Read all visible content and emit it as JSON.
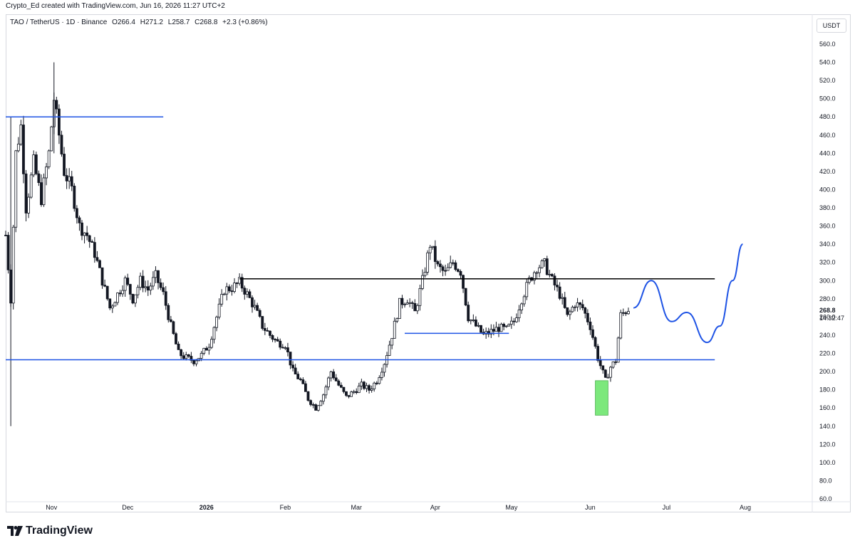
{
  "header": {
    "attribution": "Crypto_Ed created with TradingView.com, Jun 16, 2026 11:27 UTC+2"
  },
  "symbol_bar": {
    "symbol": "TAO / TetherUS · 1D · Binance",
    "open": "O266.4",
    "high": "H271.2",
    "low": "L258.7",
    "close": "C268.8",
    "change": "+2.3 (+0.86%)"
  },
  "currency_button": "USDT",
  "branding": "TradingView",
  "price_label": {
    "value": "268.8",
    "countdown": "14:32:47"
  },
  "colors": {
    "candle": "#131722",
    "support_line": "#1e53e5",
    "resistance_line": "#000000",
    "projection": "#1e53e5",
    "highlight_box": "#7ce87c"
  },
  "chart_data": {
    "type": "candlestick",
    "title": "",
    "xlabel": "",
    "ylabel": "",
    "ylim": [
      60,
      570
    ],
    "x_range": [
      "2025-10-14",
      "2026-08-01"
    ],
    "y_ticks": [
      60,
      80,
      100,
      120,
      140,
      160,
      180,
      200,
      220,
      240,
      260,
      280,
      300,
      320,
      340,
      360,
      380,
      400,
      420,
      440,
      460,
      480,
      500,
      520,
      540,
      560
    ],
    "y_tick_labels": [
      "60.0",
      "80.0",
      "100.0",
      "120.0",
      "140.0",
      "160.0",
      "180.0",
      "200.0",
      "220.0",
      "240.0",
      "260.0",
      "280.0",
      "300.0",
      "320.0",
      "340.0",
      "360.0",
      "380.0",
      "400.0",
      "420.0",
      "440.0",
      "460.0",
      "480.0",
      "500.0",
      "520.0",
      "540.0",
      "560.0"
    ],
    "x_ticks": [
      {
        "date": "2025-11-01",
        "label": "Nov",
        "bold": false
      },
      {
        "date": "2025-12-01",
        "label": "Dec",
        "bold": false
      },
      {
        "date": "2026-01-01",
        "label": "2026",
        "bold": true
      },
      {
        "date": "2026-02-01",
        "label": "Feb",
        "bold": false
      },
      {
        "date": "2026-03-01",
        "label": "Mar",
        "bold": false
      },
      {
        "date": "2026-04-01",
        "label": "Apr",
        "bold": false
      },
      {
        "date": "2026-05-01",
        "label": "May",
        "bold": false
      },
      {
        "date": "2026-06-01",
        "label": "Jun",
        "bold": false
      },
      {
        "date": "2026-07-01",
        "label": "Jul",
        "bold": false
      },
      {
        "date": "2026-08-01",
        "label": "Aug",
        "bold": false
      }
    ],
    "close_series": [
      [
        "2025-10-14",
        350
      ],
      [
        "2025-10-16",
        280
      ],
      [
        "2025-10-18",
        440
      ],
      [
        "2025-10-20",
        470
      ],
      [
        "2025-10-22",
        380
      ],
      [
        "2025-10-25",
        430
      ],
      [
        "2025-10-28",
        390
      ],
      [
        "2025-10-31",
        440
      ],
      [
        "2025-11-02",
        500
      ],
      [
        "2025-11-04",
        460
      ],
      [
        "2025-11-06",
        420
      ],
      [
        "2025-11-09",
        400
      ],
      [
        "2025-11-12",
        360
      ],
      [
        "2025-11-15",
        350
      ],
      [
        "2025-11-18",
        330
      ],
      [
        "2025-11-21",
        300
      ],
      [
        "2025-11-24",
        270
      ],
      [
        "2025-11-27",
        285
      ],
      [
        "2025-11-30",
        300
      ],
      [
        "2025-12-03",
        280
      ],
      [
        "2025-12-06",
        300
      ],
      [
        "2025-12-09",
        290
      ],
      [
        "2025-12-12",
        305
      ],
      [
        "2025-12-15",
        285
      ],
      [
        "2025-12-18",
        250
      ],
      [
        "2025-12-21",
        220
      ],
      [
        "2025-12-24",
        215
      ],
      [
        "2025-12-27",
        212
      ],
      [
        "2025-12-30",
        218
      ],
      [
        "2026-01-02",
        230
      ],
      [
        "2026-01-05",
        260
      ],
      [
        "2026-01-08",
        290
      ],
      [
        "2026-01-11",
        292
      ],
      [
        "2026-01-14",
        298
      ],
      [
        "2026-01-17",
        285
      ],
      [
        "2026-01-20",
        270
      ],
      [
        "2026-01-23",
        250
      ],
      [
        "2026-01-26",
        240
      ],
      [
        "2026-01-29",
        232
      ],
      [
        "2026-02-01",
        230
      ],
      [
        "2026-02-04",
        200
      ],
      [
        "2026-02-07",
        190
      ],
      [
        "2026-02-10",
        170
      ],
      [
        "2026-02-13",
        160
      ],
      [
        "2026-02-16",
        175
      ],
      [
        "2026-02-19",
        200
      ],
      [
        "2026-02-22",
        185
      ],
      [
        "2026-02-25",
        172
      ],
      [
        "2026-02-28",
        178
      ],
      [
        "2026-03-03",
        185
      ],
      [
        "2026-03-06",
        180
      ],
      [
        "2026-03-09",
        190
      ],
      [
        "2026-03-12",
        210
      ],
      [
        "2026-03-15",
        240
      ],
      [
        "2026-03-18",
        275
      ],
      [
        "2026-03-21",
        280
      ],
      [
        "2026-03-24",
        265
      ],
      [
        "2026-03-27",
        300
      ],
      [
        "2026-03-30",
        340
      ],
      [
        "2026-04-02",
        315
      ],
      [
        "2026-04-05",
        308
      ],
      [
        "2026-04-08",
        320
      ],
      [
        "2026-04-11",
        310
      ],
      [
        "2026-04-14",
        260
      ],
      [
        "2026-04-17",
        250
      ],
      [
        "2026-04-20",
        240
      ],
      [
        "2026-04-23",
        244
      ],
      [
        "2026-04-26",
        248
      ],
      [
        "2026-04-29",
        246
      ],
      [
        "2026-05-02",
        255
      ],
      [
        "2026-05-05",
        280
      ],
      [
        "2026-05-08",
        300
      ],
      [
        "2026-05-11",
        315
      ],
      [
        "2026-05-14",
        318
      ],
      [
        "2026-05-17",
        300
      ],
      [
        "2026-05-20",
        285
      ],
      [
        "2026-05-23",
        260
      ],
      [
        "2026-05-26",
        275
      ],
      [
        "2026-05-29",
        270
      ],
      [
        "2026-06-01",
        250
      ],
      [
        "2026-06-04",
        215
      ],
      [
        "2026-06-07",
        190
      ],
      [
        "2026-06-09",
        205
      ],
      [
        "2026-06-11",
        212
      ],
      [
        "2026-06-13",
        262
      ],
      [
        "2026-06-15",
        266.4
      ],
      [
        "2026-06-16",
        268.8
      ]
    ],
    "overlays": [
      {
        "type": "horizontal_line",
        "price": 480,
        "from": "2025-10-14",
        "to": "2025-12-15",
        "color": "#1e53e5"
      },
      {
        "type": "horizontal_line",
        "price": 302,
        "from": "2026-01-14",
        "to": "2026-07-20",
        "color": "#000000"
      },
      {
        "type": "horizontal_line",
        "price": 213,
        "from": "2025-10-14",
        "to": "2026-07-20",
        "color": "#1e53e5"
      },
      {
        "type": "horizontal_line",
        "price": 242,
        "from": "2026-03-20",
        "to": "2026-04-30",
        "color": "#1e53e5"
      },
      {
        "type": "rectangle",
        "price_top": 190,
        "price_bottom": 152,
        "from": "2026-06-03",
        "to": "2026-06-08",
        "color": "#7ce87c"
      },
      {
        "type": "projection_path",
        "points": [
          [
            "2026-06-18",
            270
          ],
          [
            "2026-06-25",
            300
          ],
          [
            "2026-07-03",
            255
          ],
          [
            "2026-07-09",
            265
          ],
          [
            "2026-07-17",
            232
          ],
          [
            "2026-07-22",
            250
          ],
          [
            "2026-07-27",
            300
          ],
          [
            "2026-07-31",
            340
          ]
        ],
        "color": "#1e53e5"
      }
    ]
  }
}
